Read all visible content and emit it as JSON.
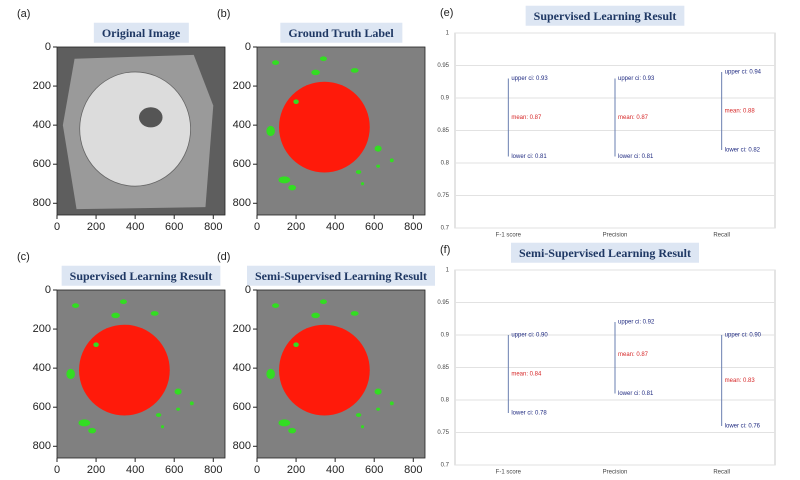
{
  "panels": [
    {
      "label": "(a)",
      "title": "Original Image",
      "kind": "original",
      "xlim": [
        0,
        860
      ],
      "ylim": [
        0,
        860
      ],
      "xticks": [
        0,
        200,
        400,
        600,
        800
      ],
      "yticks": [
        0,
        200,
        400,
        600,
        800
      ]
    },
    {
      "label": "(b)",
      "title": "Ground Truth Label",
      "kind": "mask",
      "xlim": [
        0,
        860
      ],
      "ylim": [
        0,
        860
      ],
      "xticks": [
        0,
        200,
        400,
        600,
        800
      ],
      "yticks": [
        0,
        200,
        400,
        600,
        800
      ]
    },
    {
      "label": "(c)",
      "title": "Supervised Learning Result",
      "kind": "mask",
      "xlim": [
        0,
        860
      ],
      "ylim": [
        0,
        860
      ],
      "xticks": [
        0,
        200,
        400,
        600,
        800
      ],
      "yticks": [
        0,
        200,
        400,
        600,
        800
      ]
    },
    {
      "label": "(d)",
      "title": "Semi-Supervised Learning Result",
      "kind": "mask",
      "xlim": [
        0,
        860
      ],
      "ylim": [
        0,
        860
      ],
      "xticks": [
        0,
        200,
        400,
        600,
        800
      ],
      "yticks": [
        0,
        200,
        400,
        600,
        800
      ]
    }
  ],
  "chart_data": [
    {
      "type": "interval",
      "label": "(e)",
      "title": "Supervised Learning Result",
      "categories": [
        "F-1 score",
        "Precision",
        "Recall"
      ],
      "series": [
        {
          "color": "#1f2a80",
          "values": [
            0.93,
            0.93,
            0.94
          ],
          "value_labels": [
            "upper ci: 0.93",
            "upper ci: 0.93",
            "upper ci: 0.94"
          ]
        },
        {
          "color": "#d62728",
          "values": [
            0.87,
            0.87,
            0.88
          ],
          "value_labels": [
            "mean: 0.87",
            "mean: 0.87",
            "mean: 0.88"
          ]
        },
        {
          "color": "#1f2a80",
          "values": [
            0.81,
            0.81,
            0.82
          ],
          "value_labels": [
            "lower ci: 0.81",
            "lower ci: 0.81",
            "lower ci: 0.82"
          ]
        }
      ],
      "line_color": "#6a7fb0",
      "ylim": [
        0.7,
        1
      ],
      "yticks": [
        0.7,
        0.75,
        0.8,
        0.85,
        0.9,
        0.95,
        1
      ],
      "grid": true
    },
    {
      "type": "interval",
      "label": "(f)",
      "title": "Semi-Supervised Learning Result",
      "categories": [
        "F-1 score",
        "Precision",
        "Recall"
      ],
      "series": [
        {
          "color": "#1f2a80",
          "values": [
            0.9,
            0.92,
            0.9
          ],
          "value_labels": [
            "upper ci: 0.90",
            "upper ci: 0.92",
            "upper ci: 0.90"
          ]
        },
        {
          "color": "#d62728",
          "values": [
            0.84,
            0.87,
            0.83
          ],
          "value_labels": [
            "mean: 0.84",
            "mean: 0.87",
            "mean: 0.83"
          ]
        },
        {
          "color": "#1f2a80",
          "values": [
            0.78,
            0.81,
            0.76
          ],
          "value_labels": [
            "lower ci: 0.78",
            "lower ci: 0.81",
            "lower ci: 0.76"
          ]
        }
      ],
      "line_color": "#6a7fb0",
      "ylim": [
        0.7,
        1
      ],
      "yticks": [
        0.7,
        0.75,
        0.8,
        0.85,
        0.9,
        0.95,
        1
      ],
      "grid": true
    }
  ]
}
